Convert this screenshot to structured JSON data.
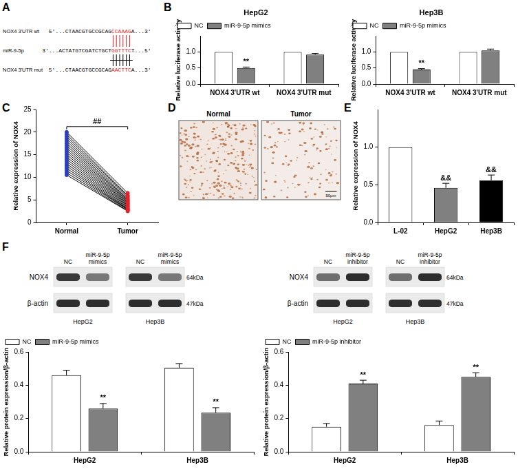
{
  "panel_labels": [
    "A",
    "B",
    "C",
    "D",
    "E",
    "F"
  ],
  "panel_A": {
    "rows": [
      {
        "label": "NOX4 3'UTR wt",
        "prefix": "5'...CTAACGTGCCGCAG",
        "site": "CCAAAG",
        "suffix": "A...3'"
      },
      {
        "label": "miR-9-5p",
        "prefix": "3'...ACTATGTCGATCTGCT",
        "site": "GGTTTC",
        "suffix": "T...5'"
      },
      {
        "label": "NOX4 3'UTR mut",
        "prefix": "5'...CTAACGTGCCGCAG",
        "site": "AACTTC",
        "suffix": "A...3'"
      }
    ]
  },
  "panel_D": {
    "images": [
      "Normal",
      "Tumor"
    ],
    "scale_bar": "50μm"
  },
  "panel_F_blots": {
    "row_labels": [
      "NOX4",
      "β-actin"
    ],
    "sizes": [
      "64kDa",
      "47kDa"
    ],
    "groups": [
      {
        "lanes": [
          "NC",
          "miR-9-5p mimics"
        ],
        "cells": [
          "HepG2",
          "Hep3B"
        ]
      },
      {
        "lanes": [
          "NC",
          "miR-9-5p inhibitor"
        ],
        "cells": [
          "HepG2",
          "Hep3B"
        ]
      }
    ]
  },
  "chart_data": [
    {
      "type": "bar",
      "title": "HepG2",
      "ylabel": "Relative luciferase activity",
      "categories": [
        "NOX4 3'UTR wt",
        "NOX4 3'UTR mut"
      ],
      "series": [
        {
          "name": "NC",
          "color": "#ffffff",
          "values": [
            1,
            1
          ]
        },
        {
          "name": "miR-9-5p mimics",
          "color": "#808080",
          "values": [
            0.5,
            0.92
          ],
          "errors": [
            0.03,
            0.035
          ],
          "significance": [
            "**",
            null
          ]
        }
      ],
      "ylim": [
        0,
        1.5
      ],
      "yticks": [
        {
          "value": 0,
          "label": "0.0"
        },
        {
          "value": 0.5,
          "label": "0.5"
        },
        {
          "value": 1,
          "label": "1.0"
        }
      ],
      "grid": false,
      "legend": "top"
    },
    {
      "type": "bar",
      "title": "Hep3B",
      "ylabel": "Relative luciferase activity",
      "categories": [
        "NOX4 3'UTR wt",
        "NOX4 3'UTR mut"
      ],
      "series": [
        {
          "name": "NC",
          "color": "#ffffff",
          "values": [
            1,
            1
          ]
        },
        {
          "name": "miR-9-5p mimics",
          "color": "#808080",
          "values": [
            0.45,
            1.05
          ],
          "errors": [
            0.03,
            0.04
          ],
          "significance": [
            "**",
            null
          ]
        }
      ],
      "ylim": [
        0,
        1.5
      ],
      "yticks": [
        {
          "value": 0,
          "label": "0.0"
        },
        {
          "value": 0.5,
          "label": "0.5"
        },
        {
          "value": 1,
          "label": "1.0"
        }
      ],
      "grid": false,
      "legend": "top"
    },
    {
      "type": "line",
      "ylabel": "Relative expression of NOX4",
      "categories": [
        "Normal",
        "Tumor"
      ],
      "series": [
        {
          "values": [
            20,
            6.5
          ]
        },
        {
          "values": [
            19.5,
            6
          ]
        },
        {
          "values": [
            19,
            5.8
          ]
        },
        {
          "values": [
            18.5,
            5.5
          ]
        },
        {
          "values": [
            18,
            5.2
          ]
        },
        {
          "values": [
            17.5,
            5
          ]
        },
        {
          "values": [
            17,
            4.8
          ]
        },
        {
          "values": [
            16.5,
            4.6
          ]
        },
        {
          "values": [
            16,
            4.4
          ]
        },
        {
          "values": [
            15.5,
            4.2
          ]
        },
        {
          "values": [
            15,
            4
          ]
        },
        {
          "values": [
            14.5,
            3.8
          ]
        },
        {
          "values": [
            14,
            3.6
          ]
        },
        {
          "values": [
            13.5,
            3.4
          ]
        },
        {
          "values": [
            13,
            3.2
          ]
        },
        {
          "values": [
            12.5,
            3
          ]
        },
        {
          "values": [
            12,
            2.9
          ]
        },
        {
          "values": [
            11.5,
            2.8
          ]
        },
        {
          "values": [
            11,
            2.6
          ]
        },
        {
          "values": [
            10.5,
            2.5
          ]
        }
      ],
      "color": "#000000",
      "colors": [
        "#2a3fbf",
        "#e8202a"
      ],
      "marker": "circle",
      "significance": "##",
      "ylim": [
        0,
        25
      ],
      "yticks": [
        0,
        5,
        10,
        15,
        20,
        25
      ],
      "grid": false
    },
    {
      "type": "bar",
      "ylabel": "Relative expression of NOX4",
      "categories": [
        "L-02",
        "HepG2",
        "Hep3B"
      ],
      "values": [
        1,
        0.46,
        0.56
      ],
      "errors": [
        0,
        0.06,
        0.07
      ],
      "significance": [
        null,
        "&&",
        "&&"
      ],
      "colors": [
        "#ffffff",
        "#808080",
        "#000000"
      ],
      "ylim": [
        0,
        1.5
      ],
      "yticks": [
        {
          "value": 0,
          "label": "0.0"
        },
        {
          "value": 0.5,
          "label": "0.5"
        },
        {
          "value": 1,
          "label": "1.0"
        }
      ],
      "grid": false
    },
    {
      "type": "bar",
      "ylabel": "Relative protein expression/β-actin",
      "categories": [
        "HepG2",
        "Hep3B"
      ],
      "series": [
        {
          "name": "NC",
          "color": "#ffffff",
          "values": [
            0.46,
            0.505
          ],
          "errors": [
            0.03,
            0.025
          ]
        },
        {
          "name": "miR-9-5p mimics",
          "color": "#808080",
          "values": [
            0.26,
            0.235
          ],
          "errors": [
            0.03,
            0.03
          ],
          "significance": [
            "**",
            "**"
          ]
        }
      ],
      "ylim": [
        0,
        0.6
      ],
      "yticks": [
        {
          "value": 0,
          "label": "0.0"
        },
        {
          "value": 0.2,
          "label": "0.2"
        },
        {
          "value": 0.4,
          "label": "0.4"
        },
        {
          "value": 0.6,
          "label": "0.6"
        }
      ],
      "grid": false,
      "legend": "top"
    },
    {
      "type": "bar",
      "ylabel": "Relative protein expression/β-actin",
      "categories": [
        "HepG2",
        "Hep3B"
      ],
      "series": [
        {
          "name": "NC",
          "color": "#ffffff",
          "values": [
            0.15,
            0.16
          ],
          "errors": [
            0.02,
            0.025
          ]
        },
        {
          "name": "miR-9-5p inhibitor",
          "color": "#808080",
          "values": [
            0.41,
            0.45
          ],
          "errors": [
            0.02,
            0.025
          ],
          "significance": [
            "**",
            "**"
          ]
        }
      ],
      "ylim": [
        0,
        0.6
      ],
      "yticks": [
        {
          "value": 0,
          "label": "0.0"
        },
        {
          "value": 0.2,
          "label": "0.2"
        },
        {
          "value": 0.4,
          "label": "0.4"
        },
        {
          "value": 0.6,
          "label": "0.6"
        }
      ],
      "grid": false,
      "legend": "top"
    }
  ]
}
